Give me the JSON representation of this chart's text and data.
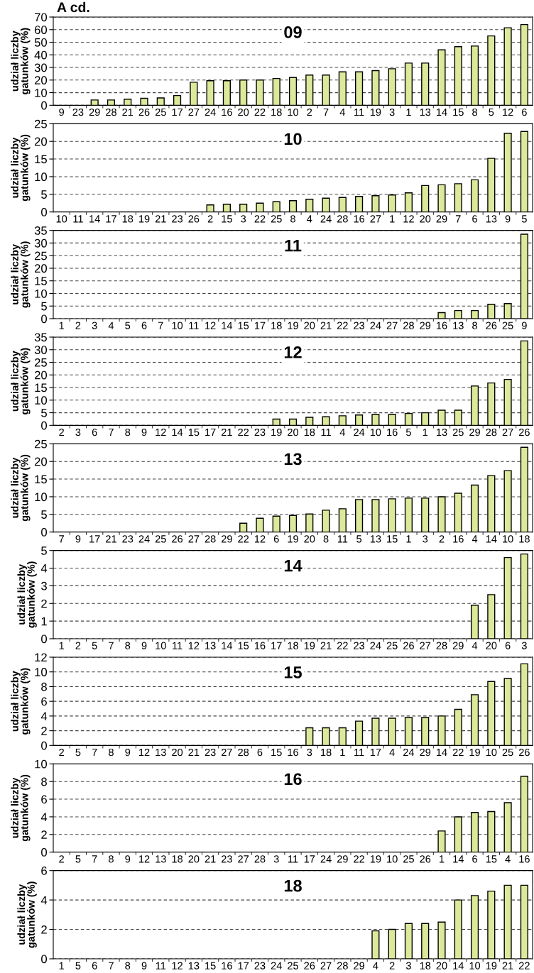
{
  "chart_data": [
    {
      "type": "bar",
      "title": "09",
      "ylabel": "udział liczby\ngatunków (%)",
      "annotations": [
        "A cd."
      ],
      "color": "#dde89a",
      "grid": "y",
      "ylim": [
        0,
        70
      ],
      "yticks": [
        0,
        10,
        20,
        30,
        40,
        50,
        60,
        70
      ],
      "categories": [
        "9",
        "23",
        "29",
        "28",
        "21",
        "26",
        "25",
        "17",
        "27",
        "24",
        "16",
        "20",
        "22",
        "18",
        "10",
        "2",
        "7",
        "4",
        "11",
        "19",
        "3",
        "1",
        "13",
        "14",
        "15",
        "8",
        "5",
        "12",
        "6"
      ],
      "values": [
        0,
        0,
        4.2,
        4.2,
        4.8,
        5.5,
        5.8,
        7.7,
        18.3,
        19.5,
        19.5,
        20,
        20,
        21.2,
        22,
        24,
        24,
        26.5,
        26.5,
        27.5,
        29,
        33.5,
        33.5,
        44,
        46.5,
        47,
        55,
        61.5,
        64
      ]
    },
    {
      "type": "bar",
      "title": "10",
      "ylabel": "udział liczby\ngatunków (%)",
      "color": "#dde89a",
      "grid": "y",
      "ylim": [
        0,
        25
      ],
      "yticks": [
        0,
        5,
        10,
        15,
        20,
        25
      ],
      "categories": [
        "10",
        "11",
        "14",
        "17",
        "18",
        "19",
        "21",
        "23",
        "26",
        "2",
        "15",
        "3",
        "22",
        "25",
        "8",
        "4",
        "24",
        "28",
        "16",
        "27",
        "1",
        "12",
        "20",
        "29",
        "7",
        "6",
        "13",
        "9",
        "5"
      ],
      "values": [
        0,
        0,
        0,
        0,
        0,
        0,
        0,
        0,
        0,
        2.0,
        2.2,
        2.2,
        2.5,
        2.9,
        3.2,
        3.6,
        3.9,
        4.1,
        4.4,
        4.6,
        4.8,
        5.4,
        7.5,
        7.7,
        8.0,
        9.1,
        15.2,
        22.3,
        22.8
      ]
    },
    {
      "type": "bar",
      "title": "11",
      "ylabel": "udział liczby\ngatunków (%)",
      "color": "#dde89a",
      "grid": "y",
      "ylim": [
        0,
        35
      ],
      "yticks": [
        0,
        5,
        10,
        15,
        20,
        25,
        30,
        35
      ],
      "categories": [
        "1",
        "2",
        "3",
        "4",
        "5",
        "6",
        "7",
        "10",
        "11",
        "12",
        "14",
        "15",
        "17",
        "18",
        "19",
        "20",
        "21",
        "22",
        "23",
        "24",
        "27",
        "28",
        "29",
        "16",
        "13",
        "8",
        "26",
        "25",
        "9"
      ],
      "values": [
        0,
        0,
        0,
        0,
        0,
        0,
        0,
        0,
        0,
        0,
        0,
        0,
        0,
        0,
        0,
        0,
        0,
        0,
        0,
        0,
        0,
        0,
        0,
        2.4,
        3.2,
        3.2,
        5.7,
        6.0,
        33.5
      ]
    },
    {
      "type": "bar",
      "title": "12",
      "ylabel": "udział liczby\ngatunków (%)",
      "color": "#dde89a",
      "grid": "y",
      "ylim": [
        0,
        35
      ],
      "yticks": [
        0,
        5,
        10,
        15,
        20,
        25,
        30,
        35
      ],
      "categories": [
        "2",
        "3",
        "6",
        "7",
        "8",
        "9",
        "12",
        "14",
        "15",
        "17",
        "21",
        "22",
        "23",
        "19",
        "20",
        "18",
        "11",
        "4",
        "24",
        "10",
        "16",
        "5",
        "1",
        "13",
        "25",
        "29",
        "28",
        "27",
        "26"
      ],
      "values": [
        0,
        0,
        0,
        0,
        0,
        0,
        0,
        0,
        0,
        0,
        0,
        0,
        0,
        2.5,
        2.5,
        3.2,
        3.4,
        3.8,
        4.1,
        4.3,
        4.3,
        4.7,
        5.0,
        6.0,
        6.0,
        15.6,
        16.8,
        18.2,
        33.5
      ]
    },
    {
      "type": "bar",
      "title": "13",
      "ylabel": "udział liczby\ngatunków (%)",
      "color": "#dde89a",
      "grid": "y",
      "ylim": [
        0,
        25
      ],
      "yticks": [
        0,
        5,
        10,
        15,
        20,
        25
      ],
      "categories": [
        "7",
        "9",
        "17",
        "21",
        "23",
        "24",
        "25",
        "26",
        "27",
        "28",
        "29",
        "22",
        "12",
        "6",
        "19",
        "20",
        "8",
        "11",
        "5",
        "13",
        "15",
        "1",
        "3",
        "2",
        "16",
        "4",
        "14",
        "10",
        "18"
      ],
      "values": [
        0,
        0,
        0,
        0,
        0,
        0,
        0,
        0,
        0,
        0,
        0,
        2.5,
        3.9,
        4.5,
        4.7,
        5.1,
        6.2,
        6.6,
        9.2,
        9.2,
        9.4,
        9.6,
        9.6,
        10.0,
        11.0,
        13.3,
        16.0,
        17.4,
        24.0
      ]
    },
    {
      "type": "bar",
      "title": "14",
      "ylabel": "udział liczby\ngatunków (%)",
      "color": "#dde89a",
      "grid": "y",
      "ylim": [
        0,
        5
      ],
      "yticks": [
        0,
        1,
        2,
        3,
        4,
        5
      ],
      "categories": [
        "1",
        "2",
        "5",
        "7",
        "8",
        "9",
        "10",
        "11",
        "12",
        "13",
        "14",
        "15",
        "16",
        "17",
        "18",
        "19",
        "21",
        "22",
        "23",
        "24",
        "25",
        "26",
        "27",
        "28",
        "29",
        "4",
        "20",
        "6",
        "3"
      ],
      "values": [
        0,
        0,
        0,
        0,
        0,
        0,
        0,
        0,
        0,
        0,
        0,
        0,
        0,
        0,
        0,
        0,
        0,
        0,
        0,
        0,
        0,
        0,
        0,
        0,
        0,
        1.9,
        2.5,
        4.6,
        4.8
      ]
    },
    {
      "type": "bar",
      "title": "15",
      "ylabel": "udział liczby\ngatunków (%)",
      "color": "#dde89a",
      "grid": "y",
      "ylim": [
        0,
        12
      ],
      "yticks": [
        0,
        2,
        4,
        6,
        8,
        10,
        12
      ],
      "categories": [
        "2",
        "5",
        "7",
        "8",
        "9",
        "12",
        "13",
        "20",
        "21",
        "23",
        "27",
        "28",
        "6",
        "15",
        "16",
        "3",
        "18",
        "1",
        "11",
        "17",
        "4",
        "24",
        "29",
        "14",
        "22",
        "19",
        "10",
        "25",
        "26"
      ],
      "values": [
        0,
        0,
        0,
        0,
        0,
        0,
        0,
        0,
        0,
        0,
        0,
        0,
        0,
        0,
        0,
        2.4,
        2.4,
        2.4,
        3.3,
        3.7,
        3.7,
        3.8,
        3.8,
        4.0,
        4.9,
        6.9,
        8.7,
        9.1,
        11.1
      ]
    },
    {
      "type": "bar",
      "title": "16",
      "ylabel": "udział liczby\ngatunków (%)",
      "color": "#dde89a",
      "grid": "y",
      "ylim": [
        0,
        10
      ],
      "yticks": [
        0,
        2,
        4,
        6,
        8,
        10
      ],
      "categories": [
        "2",
        "5",
        "7",
        "8",
        "9",
        "12",
        "13",
        "18",
        "20",
        "21",
        "23",
        "27",
        "28",
        "3",
        "11",
        "17",
        "24",
        "29",
        "22",
        "19",
        "10",
        "25",
        "26",
        "1",
        "14",
        "6",
        "15",
        "4",
        "16"
      ],
      "values": [
        0,
        0,
        0,
        0,
        0,
        0,
        0,
        0,
        0,
        0,
        0,
        0,
        0,
        0,
        0,
        0,
        0,
        0,
        0,
        0,
        0,
        0,
        0,
        2.4,
        4.0,
        4.5,
        4.6,
        5.6,
        8.6
      ]
    },
    {
      "type": "bar",
      "title": "18",
      "ylabel": "udział liczby\ngatunków (%)",
      "color": "#dde89a",
      "grid": "y",
      "ylim": [
        0,
        6
      ],
      "yticks": [
        0,
        2,
        4,
        6
      ],
      "categories": [
        "1",
        "5",
        "6",
        "7",
        "8",
        "9",
        "11",
        "12",
        "13",
        "15",
        "16",
        "17",
        "23",
        "24",
        "25",
        "26",
        "27",
        "28",
        "29",
        "4",
        "2",
        "3",
        "18",
        "20",
        "14",
        "10",
        "19",
        "21",
        "22"
      ],
      "values": [
        0,
        0,
        0,
        0,
        0,
        0,
        0,
        0,
        0,
        0,
        0,
        0,
        0,
        0,
        0,
        0,
        0,
        0,
        0,
        1.9,
        2.0,
        2.4,
        2.4,
        2.5,
        4.0,
        4.3,
        4.6,
        5.0,
        5.0
      ]
    }
  ]
}
